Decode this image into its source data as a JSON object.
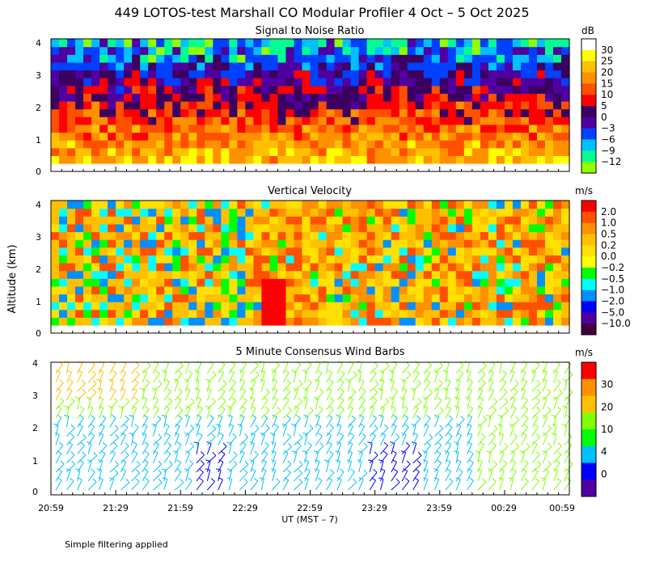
{
  "figure": {
    "title": "449 LOTOS-test Marshall CO Modular Profiler  4 Oct –  5 Oct 2025",
    "ylabel": "Altitude (km)",
    "xlabel": "UT  (MST – 7)",
    "footnote": "Simple filtering applied"
  },
  "chart_data": [
    {
      "type": "heatmap",
      "title": "Signal to Noise Ratio",
      "ylim": [
        0,
        4
      ],
      "yticks": [
        "0",
        "1",
        "2",
        "3",
        "4"
      ],
      "xticks": [
        "20:59",
        "21:29",
        "21:59",
        "22:29",
        "22:59",
        "23:29",
        "23:59",
        "00:29",
        "00:59"
      ],
      "colorbar": {
        "unit": "dB",
        "labels": [
          "30",
          "25",
          "20",
          "15",
          "10",
          "5",
          "0",
          "−3",
          "−6",
          "−9",
          "−12"
        ],
        "colors": [
          "#ffffff",
          "#ffff00",
          "#ffc000",
          "#ff9000",
          "#ff5000",
          "#ff0000",
          "#3c0060",
          "#5000a0",
          "#0040ff",
          "#00c0ff",
          "#00ff90",
          "#90ff00"
        ]
      }
    },
    {
      "type": "heatmap",
      "title": "Vertical Velocity",
      "ylim": [
        0,
        4
      ],
      "yticks": [
        "0",
        "1",
        "2",
        "3",
        "4"
      ],
      "colorbar": {
        "unit": "m/s",
        "labels": [
          "2.0",
          "1.0",
          "0.5",
          "0.2",
          "0.0",
          "−0.2",
          "−0.5",
          "−1.0",
          "−2.0",
          "−5.0",
          "−10.0"
        ],
        "colors": [
          "#ff0000",
          "#ff5000",
          "#ff9000",
          "#ffc000",
          "#ffe000",
          "#ffff00",
          "#00ff00",
          "#00ffff",
          "#0090ff",
          "#0000ff",
          "#5000a0",
          "#40003c"
        ]
      }
    },
    {
      "type": "scatter",
      "title": "5 Minute Consensus Wind Barbs",
      "ylim": [
        0,
        4
      ],
      "yticks": [
        "0",
        "1",
        "2",
        "3",
        "4"
      ],
      "colorbar": {
        "unit": "m/s",
        "labels": [
          "30",
          "20",
          "10",
          "4",
          "0"
        ],
        "colors": [
          "#ff0000",
          "#ff9000",
          "#ffc000",
          "#80ff00",
          "#00ff00",
          "#00c0ff",
          "#0000ff",
          "#5000a0"
        ]
      }
    }
  ]
}
